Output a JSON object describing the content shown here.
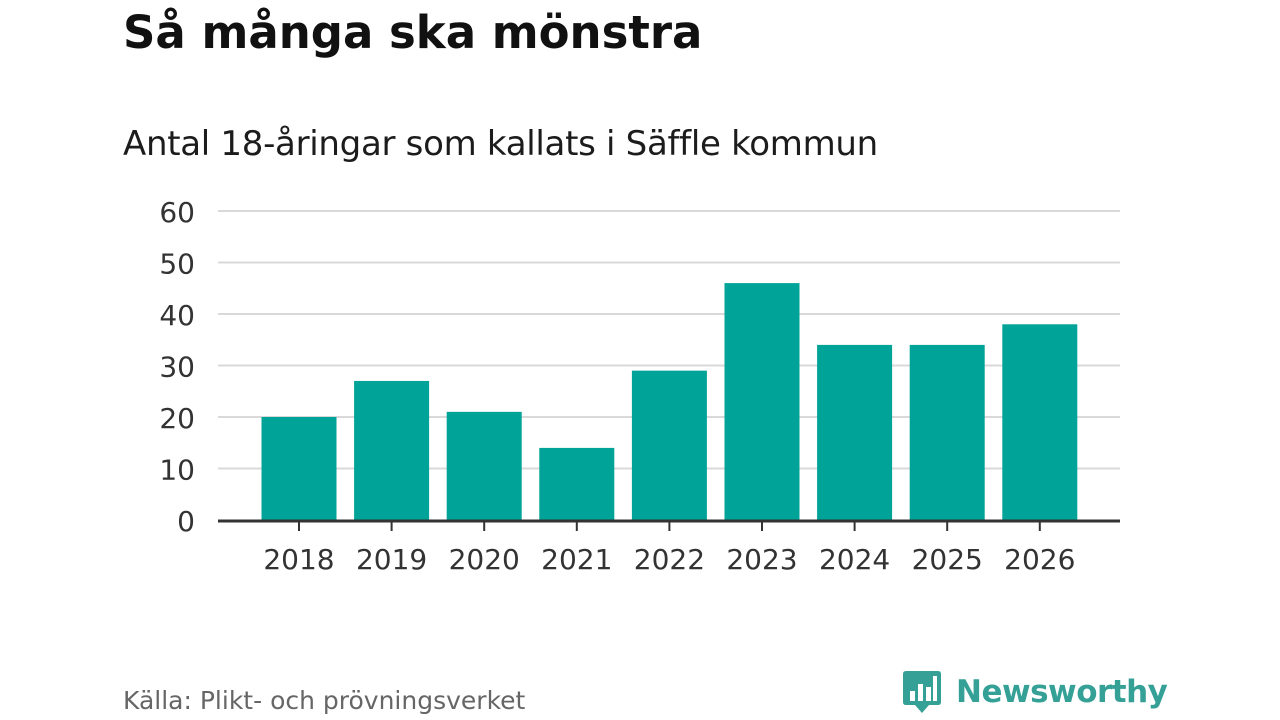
{
  "title": "Så många ska mönstra",
  "subtitle": "Antal 18-åringar som kallats i Säffle kommun",
  "source": "Källa: Plikt- och prövningsverket",
  "brand": {
    "name": "Newsworthy",
    "logo_icon": "bar-chart-speech-bubble-icon",
    "color": "#35a096"
  },
  "colors": {
    "bar": "#00a398",
    "grid": "#d9d9d9",
    "axis": "#333333",
    "text": "#333333"
  },
  "chart_data": {
    "type": "bar",
    "title": "Så många ska mönstra",
    "subtitle": "Antal 18-åringar som kallats i Säffle kommun",
    "categories": [
      "2018",
      "2019",
      "2020",
      "2021",
      "2022",
      "2023",
      "2024",
      "2025",
      "2026"
    ],
    "values": [
      20,
      27,
      21,
      14,
      29,
      46,
      34,
      34,
      38
    ],
    "ylim": [
      0,
      60
    ],
    "yticks": [
      0,
      10,
      20,
      30,
      40,
      50,
      60
    ],
    "grid": true,
    "legend": "none"
  }
}
